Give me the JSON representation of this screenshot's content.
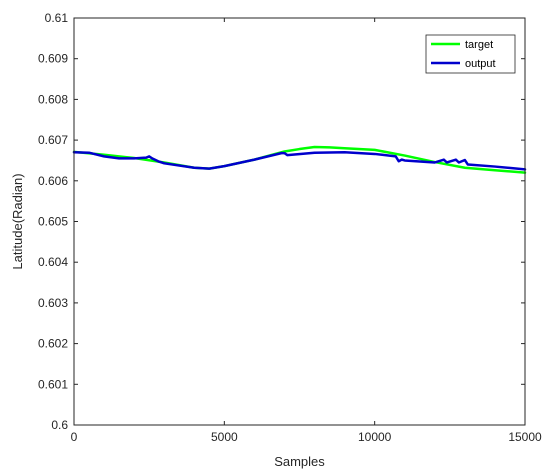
{
  "chart_data": {
    "type": "line",
    "title": "",
    "xlabel": "Samples",
    "ylabel": "Latitude(Radian)",
    "xlim": [
      0,
      15000
    ],
    "ylim": [
      0.6,
      0.61
    ],
    "x_ticks": [
      0,
      5000,
      10000,
      15000
    ],
    "x_tick_labels": [
      "0",
      "5000",
      "10000",
      "15000"
    ],
    "y_ticks": [
      0.6,
      0.601,
      0.602,
      0.603,
      0.604,
      0.605,
      0.606,
      0.607,
      0.608,
      0.609,
      0.61
    ],
    "y_tick_labels": [
      "0.6",
      "0.601",
      "0.602",
      "0.603",
      "0.604",
      "0.605",
      "0.606",
      "0.607",
      "0.608",
      "0.609",
      "0.61"
    ],
    "grid": false,
    "legend_position": "top-right",
    "series": [
      {
        "name": "target",
        "color": "#00ff00",
        "x": [
          0,
          1000,
          2000,
          3000,
          4000,
          4500,
          5000,
          6000,
          7000,
          7500,
          8000,
          8500,
          9000,
          10000,
          11000,
          12000,
          13000,
          14000,
          15000
        ],
        "y": [
          0.60671,
          0.60664,
          0.60656,
          0.60645,
          0.60632,
          0.6063,
          0.60636,
          0.60652,
          0.60672,
          0.60678,
          0.60683,
          0.60682,
          0.6068,
          0.60676,
          0.60662,
          0.60646,
          0.60632,
          0.60626,
          0.6062
        ]
      },
      {
        "name": "output",
        "color": "#0000cc",
        "x": [
          0,
          500,
          1000,
          1500,
          2000,
          2400,
          2500,
          2600,
          2800,
          3000,
          4000,
          4500,
          5000,
          6000,
          6900,
          7000,
          7100,
          8000,
          9000,
          10000,
          10700,
          10800,
          10900,
          11000,
          12000,
          12300,
          12400,
          12700,
          12800,
          12900,
          13000,
          13100,
          14000,
          15000
        ],
        "y": [
          0.6067,
          0.60669,
          0.6066,
          0.60655,
          0.60655,
          0.60657,
          0.6066,
          0.60655,
          0.60648,
          0.60643,
          0.60632,
          0.6063,
          0.60636,
          0.60652,
          0.60668,
          0.60668,
          0.60663,
          0.60669,
          0.6067,
          0.60666,
          0.6066,
          0.60648,
          0.60652,
          0.6065,
          0.60645,
          0.60652,
          0.60645,
          0.60652,
          0.60645,
          0.60648,
          0.60651,
          0.6064,
          0.60635,
          0.60628
        ]
      }
    ]
  }
}
